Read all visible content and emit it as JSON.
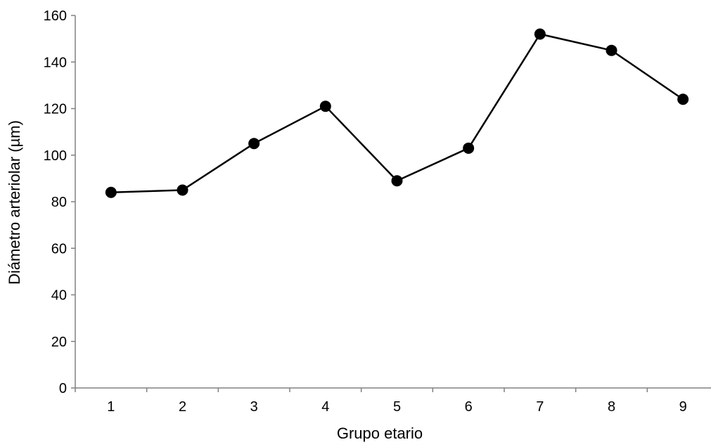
{
  "chart_data": {
    "type": "line",
    "title": "",
    "xlabel": "Grupo etario",
    "ylabel": "Diámetro arteriolar  (µm)",
    "categories": [
      "1",
      "2",
      "3",
      "4",
      "5",
      "6",
      "7",
      "8",
      "9"
    ],
    "series": [
      {
        "values": [
          84,
          85,
          105,
          121,
          89,
          103,
          152,
          145,
          124
        ],
        "color": "#000000",
        "marker": "circle"
      }
    ],
    "yticks": [
      "0",
      "20",
      "40",
      "60",
      "80",
      "100",
      "120",
      "140",
      "160"
    ],
    "ylim": [
      0,
      160
    ],
    "grid": false,
    "legend": "none",
    "colors": {
      "line": "#000000",
      "axis": "#808080",
      "text": "#000000"
    }
  }
}
